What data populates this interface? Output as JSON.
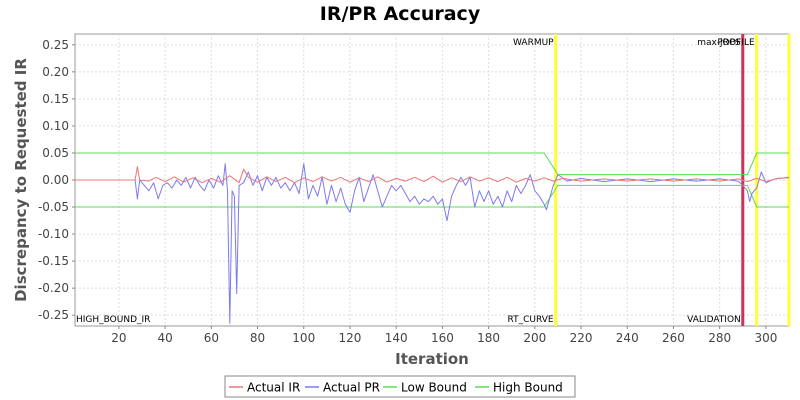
{
  "chart_data": {
    "type": "line",
    "title": "IR/PR Accuracy",
    "xlabel": "Iteration",
    "ylabel": "Discrepancy to Requested IR",
    "xlim": [
      1,
      310
    ],
    "ylim": [
      -0.27,
      0.27
    ],
    "x_ticks": [
      20,
      40,
      60,
      80,
      100,
      120,
      140,
      160,
      180,
      200,
      220,
      240,
      260,
      280,
      300
    ],
    "y_ticks": [
      -0.25,
      -0.2,
      -0.15,
      -0.1,
      -0.05,
      0.0,
      0.05,
      0.1,
      0.15,
      0.2,
      0.25
    ],
    "y_tick_labels": [
      "-0.25",
      "-0.20",
      "-0.15",
      "-0.10",
      "-0.05",
      "0.00",
      "0.05",
      "0.10",
      "0.15",
      "0.20",
      "0.25"
    ],
    "grid": true,
    "legend_position": "bottom",
    "series": [
      {
        "name": "Actual IR",
        "color": "#e87878",
        "points": [
          [
            1,
            0
          ],
          [
            27,
            0
          ],
          [
            28,
            0.025
          ],
          [
            29,
            0
          ],
          [
            33,
            -0.002
          ],
          [
            36,
            0.005
          ],
          [
            40,
            -0.003
          ],
          [
            44,
            0.006
          ],
          [
            48,
            -0.004
          ],
          [
            52,
            0.004
          ],
          [
            56,
            -0.005
          ],
          [
            60,
            0.003
          ],
          [
            64,
            -0.004
          ],
          [
            68,
            0.008
          ],
          [
            72,
            -0.005
          ],
          [
            74,
            0.02
          ],
          [
            76,
            0.005
          ],
          [
            80,
            -0.004
          ],
          [
            84,
            0.006
          ],
          [
            88,
            -0.003
          ],
          [
            92,
            0.005
          ],
          [
            96,
            -0.005
          ],
          [
            100,
            0.004
          ],
          [
            104,
            -0.003
          ],
          [
            108,
            0.006
          ],
          [
            112,
            -0.002
          ],
          [
            116,
            0.005
          ],
          [
            120,
            -0.004
          ],
          [
            124,
            0.004
          ],
          [
            128,
            -0.003
          ],
          [
            132,
            0.006
          ],
          [
            136,
            -0.004
          ],
          [
            140,
            0.003
          ],
          [
            144,
            -0.002
          ],
          [
            148,
            0.005
          ],
          [
            152,
            -0.003
          ],
          [
            156,
            0.007
          ],
          [
            160,
            -0.004
          ],
          [
            164,
            0.004
          ],
          [
            168,
            -0.003
          ],
          [
            172,
            0.006
          ],
          [
            176,
            -0.002
          ],
          [
            180,
            0.004
          ],
          [
            184,
            -0.003
          ],
          [
            188,
            0.005
          ],
          [
            192,
            -0.004
          ],
          [
            196,
            0.003
          ],
          [
            200,
            -0.002
          ],
          [
            204,
            0.004
          ],
          [
            208,
            -0.002
          ],
          [
            212,
            0.003
          ],
          [
            220,
            -0.002
          ],
          [
            230,
            0.002
          ],
          [
            240,
            -0.002
          ],
          [
            250,
            0.002
          ],
          [
            260,
            -0.002
          ],
          [
            270,
            0.002
          ],
          [
            280,
            -0.002
          ],
          [
            288,
            0.002
          ],
          [
            292,
            -0.003
          ],
          [
            296,
            0.003
          ],
          [
            300,
            -0.003
          ],
          [
            305,
            0.003
          ],
          [
            310,
            0.004
          ]
        ]
      },
      {
        "name": "Actual PR",
        "color": "#7b7bf0",
        "points": [
          [
            1,
            0
          ],
          [
            27,
            0
          ],
          [
            28,
            -0.035
          ],
          [
            29,
            0
          ],
          [
            31,
            -0.01
          ],
          [
            33,
            -0.02
          ],
          [
            35,
            -0.005
          ],
          [
            37,
            -0.035
          ],
          [
            39,
            -0.01
          ],
          [
            41,
            -0.005
          ],
          [
            43,
            -0.015
          ],
          [
            45,
            0
          ],
          [
            47,
            -0.01
          ],
          [
            49,
            0.005
          ],
          [
            51,
            -0.015
          ],
          [
            53,
            0.005
          ],
          [
            55,
            -0.01
          ],
          [
            57,
            -0.02
          ],
          [
            59,
            0
          ],
          [
            61,
            -0.015
          ],
          [
            63,
            0.008
          ],
          [
            65,
            -0.01
          ],
          [
            66,
            0.03
          ],
          [
            67,
            -0.02
          ],
          [
            68,
            -0.265
          ],
          [
            69,
            -0.02
          ],
          [
            70,
            -0.03
          ],
          [
            71,
            -0.21
          ],
          [
            72,
            -0.01
          ],
          [
            74,
            -0.005
          ],
          [
            76,
            0.015
          ],
          [
            78,
            -0.01
          ],
          [
            80,
            0.008
          ],
          [
            82,
            -0.02
          ],
          [
            84,
            0.005
          ],
          [
            86,
            -0.01
          ],
          [
            88,
            0.005
          ],
          [
            90,
            -0.015
          ],
          [
            92,
            -0.005
          ],
          [
            94,
            -0.02
          ],
          [
            96,
            -0.005
          ],
          [
            98,
            -0.025
          ],
          [
            100,
            0.03
          ],
          [
            102,
            -0.035
          ],
          [
            104,
            -0.01
          ],
          [
            106,
            -0.03
          ],
          [
            108,
            0.005
          ],
          [
            110,
            -0.045
          ],
          [
            112,
            -0.01
          ],
          [
            114,
            -0.04
          ],
          [
            116,
            -0.015
          ],
          [
            118,
            -0.045
          ],
          [
            120,
            -0.06
          ],
          [
            122,
            -0.02
          ],
          [
            124,
            0.005
          ],
          [
            126,
            -0.04
          ],
          [
            128,
            -0.015
          ],
          [
            130,
            0.01
          ],
          [
            132,
            -0.02
          ],
          [
            134,
            -0.05
          ],
          [
            136,
            -0.03
          ],
          [
            138,
            -0.01
          ],
          [
            140,
            -0.02
          ],
          [
            142,
            -0.01
          ],
          [
            144,
            -0.025
          ],
          [
            146,
            -0.04
          ],
          [
            148,
            -0.03
          ],
          [
            150,
            -0.045
          ],
          [
            152,
            -0.035
          ],
          [
            154,
            -0.04
          ],
          [
            156,
            -0.03
          ],
          [
            158,
            -0.045
          ],
          [
            160,
            -0.035
          ],
          [
            162,
            -0.075
          ],
          [
            164,
            -0.03
          ],
          [
            166,
            -0.01
          ],
          [
            168,
            0.005
          ],
          [
            170,
            -0.01
          ],
          [
            172,
            0.005
          ],
          [
            174,
            -0.05
          ],
          [
            176,
            -0.02
          ],
          [
            178,
            -0.04
          ],
          [
            180,
            -0.02
          ],
          [
            182,
            -0.045
          ],
          [
            184,
            -0.03
          ],
          [
            186,
            -0.05
          ],
          [
            188,
            -0.02
          ],
          [
            190,
            -0.04
          ],
          [
            192,
            -0.01
          ],
          [
            194,
            -0.025
          ],
          [
            196,
            -0.01
          ],
          [
            198,
            0.01
          ],
          [
            200,
            -0.02
          ],
          [
            202,
            -0.03
          ],
          [
            204,
            -0.045
          ],
          [
            205,
            -0.055
          ],
          [
            206,
            -0.04
          ],
          [
            208,
            -0.01
          ],
          [
            210,
            0.01
          ],
          [
            214,
            -0.002
          ],
          [
            220,
            0.003
          ],
          [
            230,
            -0.003
          ],
          [
            240,
            0.002
          ],
          [
            250,
            -0.003
          ],
          [
            260,
            0.002
          ],
          [
            270,
            -0.002
          ],
          [
            280,
            0.002
          ],
          [
            288,
            -0.002
          ],
          [
            290,
            -0.01
          ],
          [
            292,
            -0.02
          ],
          [
            293,
            -0.04
          ],
          [
            294,
            -0.025
          ],
          [
            296,
            -0.015
          ],
          [
            298,
            0.015
          ],
          [
            300,
            -0.005
          ],
          [
            304,
            0.002
          ],
          [
            310,
            0.005
          ]
        ]
      },
      {
        "name": "Low Bound",
        "color": "#55dd55",
        "points": [
          [
            1,
            -0.05
          ],
          [
            204,
            -0.05
          ],
          [
            210,
            -0.01
          ],
          [
            292,
            -0.01
          ],
          [
            296,
            -0.05
          ],
          [
            310,
            -0.05
          ]
        ]
      },
      {
        "name": "High Bound",
        "color": "#55dd55",
        "points": [
          [
            1,
            0.05
          ],
          [
            204,
            0.05
          ],
          [
            210,
            0.01
          ],
          [
            292,
            0.01
          ],
          [
            296,
            0.05
          ],
          [
            310,
            0.05
          ]
        ]
      }
    ],
    "markers": [
      {
        "x": 209,
        "color": "#ffff33",
        "top_label": "WARMUP",
        "bottom_label": "RT_CURVE"
      },
      {
        "x": 290,
        "color": "#cc3355",
        "top_label": "max-jOPS",
        "bottom_label": "VALIDATION"
      },
      {
        "x": 296,
        "color": "#ffff33",
        "top_label": "PROFILE",
        "bottom_label": ""
      },
      {
        "x": 310,
        "color": "#ffff33",
        "top_label": "",
        "bottom_label": ""
      }
    ],
    "annotation_left": "HIGH_BOUND_IR"
  }
}
